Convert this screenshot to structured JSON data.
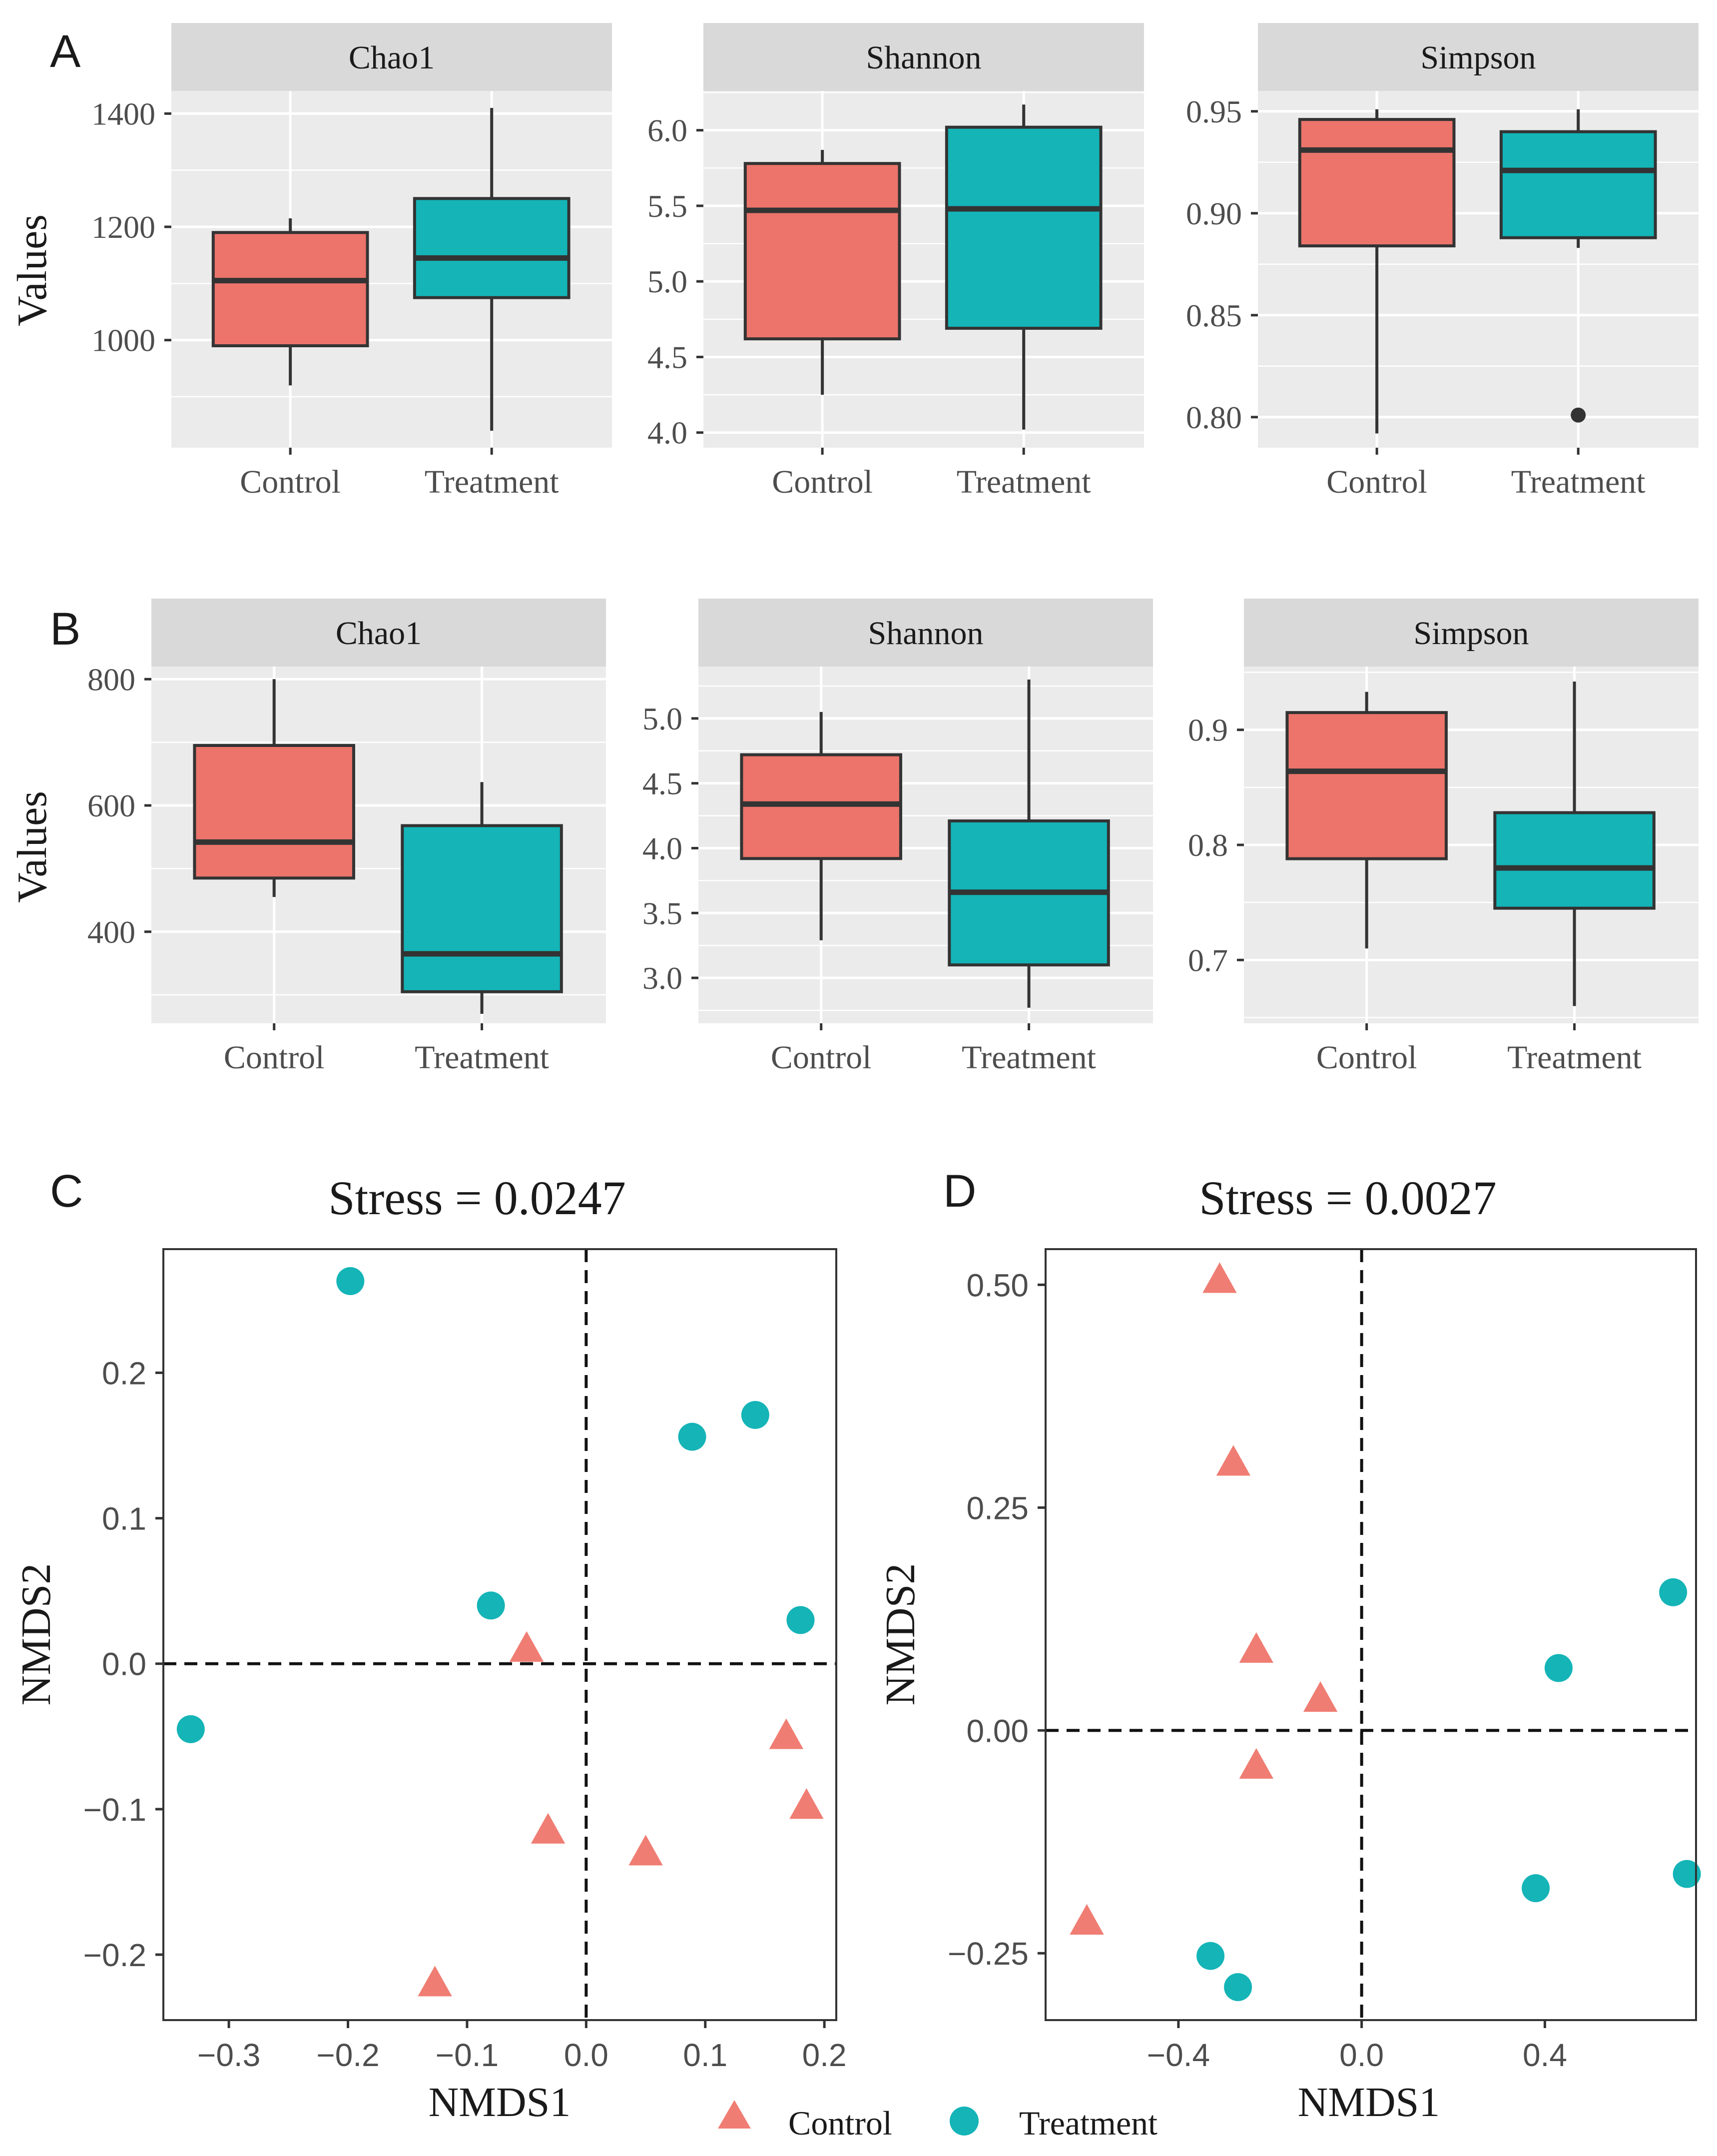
{
  "colors": {
    "control": "#F07D73",
    "control_box": "#EC746B",
    "treatment": "#14B4B7",
    "panel_bg": "#EBEBEB",
    "strip_bg": "#D9D9D9",
    "grid": "#FFFFFF",
    "line": "#333333"
  },
  "chart_data": [
    {
      "type": "box",
      "panel_letter": "A",
      "ylabel": "Values",
      "categories": [
        "Control",
        "Treatment"
      ],
      "facets": [
        {
          "title": "Chao1",
          "ylim": [
            810,
            1440
          ],
          "yticks": [
            1000,
            1200,
            1400
          ],
          "ytick_labels": [
            "1000",
            "1200",
            "1400"
          ],
          "boxes": [
            {
              "group": "Control",
              "min": 920,
              "q1": 990,
              "median": 1105,
              "q3": 1190,
              "max": 1215,
              "outliers": []
            },
            {
              "group": "Treatment",
              "min": 840,
              "q1": 1075,
              "median": 1145,
              "q3": 1250,
              "max": 1410,
              "outliers": []
            }
          ]
        },
        {
          "title": "Shannon",
          "ylim": [
            3.9,
            6.26
          ],
          "yticks": [
            4.0,
            4.5,
            5.0,
            5.5,
            6.0
          ],
          "ytick_labels": [
            "4.0",
            "4.5",
            "5.0",
            "5.5",
            "6.0"
          ],
          "boxes": [
            {
              "group": "Control",
              "min": 4.25,
              "q1": 4.62,
              "median": 5.47,
              "q3": 5.78,
              "max": 5.87,
              "outliers": []
            },
            {
              "group": "Treatment",
              "min": 4.02,
              "q1": 4.69,
              "median": 5.48,
              "q3": 6.02,
              "max": 6.17,
              "outliers": []
            }
          ]
        },
        {
          "title": "Simpson",
          "ylim": [
            0.785,
            0.96
          ],
          "yticks": [
            0.8,
            0.85,
            0.9,
            0.95
          ],
          "ytick_labels": [
            "0.80",
            "0.85",
            "0.90",
            "0.95"
          ],
          "boxes": [
            {
              "group": "Control",
              "min": 0.792,
              "q1": 0.884,
              "median": 0.931,
              "q3": 0.946,
              "max": 0.951,
              "outliers": []
            },
            {
              "group": "Treatment",
              "min": 0.883,
              "q1": 0.888,
              "median": 0.921,
              "q3": 0.94,
              "max": 0.951,
              "outliers": [
                0.801
              ]
            }
          ]
        }
      ]
    },
    {
      "type": "box",
      "panel_letter": "B",
      "ylabel": "Values",
      "categories": [
        "Control",
        "Treatment"
      ],
      "facets": [
        {
          "title": "Chao1",
          "ylim": [
            255,
            820
          ],
          "yticks": [
            400,
            600,
            800
          ],
          "ytick_labels": [
            "400",
            "600",
            "800"
          ],
          "boxes": [
            {
              "group": "Control",
              "min": 455,
              "q1": 485,
              "median": 542,
              "q3": 695,
              "max": 800,
              "outliers": []
            },
            {
              "group": "Treatment",
              "min": 270,
              "q1": 305,
              "median": 365,
              "q3": 568,
              "max": 637,
              "outliers": []
            }
          ]
        },
        {
          "title": "Shannon",
          "ylim": [
            2.65,
            5.4
          ],
          "yticks": [
            3.0,
            3.5,
            4.0,
            4.5,
            5.0
          ],
          "ytick_labels": [
            "3.0",
            "3.5",
            "4.0",
            "4.5",
            "5.0"
          ],
          "boxes": [
            {
              "group": "Control",
              "min": 3.29,
              "q1": 3.92,
              "median": 4.34,
              "q3": 4.72,
              "max": 5.05,
              "outliers": []
            },
            {
              "group": "Treatment",
              "min": 2.77,
              "q1": 3.1,
              "median": 3.66,
              "q3": 4.21,
              "max": 5.3,
              "outliers": []
            }
          ]
        },
        {
          "title": "Simpson",
          "ylim": [
            0.645,
            0.955
          ],
          "yticks": [
            0.7,
            0.8,
            0.9
          ],
          "ytick_labels": [
            "0.7",
            "0.8",
            "0.9"
          ],
          "boxes": [
            {
              "group": "Control",
              "min": 0.71,
              "q1": 0.788,
              "median": 0.864,
              "q3": 0.915,
              "max": 0.933,
              "outliers": []
            },
            {
              "group": "Treatment",
              "min": 0.66,
              "q1": 0.745,
              "median": 0.78,
              "q3": 0.828,
              "max": 0.942,
              "outliers": []
            }
          ]
        }
      ]
    },
    {
      "type": "scatter",
      "panel_letter": "C",
      "title": "Stress = 0.0247",
      "xlabel": "NMDS1",
      "ylabel": "NMDS2",
      "xlim": [
        -0.355,
        0.21
      ],
      "ylim": [
        -0.245,
        0.285
      ],
      "xticks": [
        -0.3,
        -0.2,
        -0.1,
        0.0,
        0.1,
        0.2
      ],
      "xtick_labels": [
        "−0.3",
        "−0.2",
        "−0.1",
        "0.0",
        "0.1",
        "0.2"
      ],
      "yticks": [
        -0.2,
        -0.1,
        0.0,
        0.1,
        0.2
      ],
      "ytick_labels": [
        "−0.2",
        "−0.1",
        "0.0",
        "0.1",
        "0.2"
      ],
      "series": [
        {
          "name": "Control",
          "marker": "triangle",
          "points": [
            [
              -0.05,
              0.01
            ],
            [
              -0.032,
              -0.115
            ],
            [
              0.05,
              -0.13
            ],
            [
              0.168,
              -0.05
            ],
            [
              0.185,
              -0.098
            ],
            [
              -0.127,
              -0.22
            ]
          ]
        },
        {
          "name": "Treatment",
          "marker": "circle",
          "points": [
            [
              -0.198,
              0.263
            ],
            [
              0.089,
              0.156
            ],
            [
              0.142,
              0.171
            ],
            [
              -0.08,
              0.04
            ],
            [
              0.18,
              0.03
            ],
            [
              -0.332,
              -0.045
            ]
          ]
        }
      ]
    },
    {
      "type": "scatter",
      "panel_letter": "D",
      "title": "Stress = 0.0027",
      "xlabel": "NMDS1",
      "ylabel": "NMDS2",
      "xlim": [
        -0.69,
        0.73
      ],
      "ylim": [
        -0.325,
        0.54
      ],
      "xticks": [
        -0.4,
        0.0,
        0.4
      ],
      "xtick_labels": [
        "−0.4",
        "0.0",
        "0.4"
      ],
      "yticks": [
        -0.25,
        0.0,
        0.25,
        0.5
      ],
      "ytick_labels": [
        "−0.25",
        "0.00",
        "0.25",
        "0.50"
      ],
      "series": [
        {
          "name": "Control",
          "marker": "triangle",
          "points": [
            [
              -0.31,
              0.505
            ],
            [
              -0.28,
              0.3
            ],
            [
              -0.23,
              0.09
            ],
            [
              -0.09,
              0.035
            ],
            [
              -0.23,
              -0.04
            ],
            [
              -0.6,
              -0.215
            ]
          ]
        },
        {
          "name": "Treatment",
          "marker": "circle",
          "points": [
            [
              0.68,
              0.155
            ],
            [
              0.43,
              0.07
            ],
            [
              0.38,
              -0.177
            ],
            [
              0.71,
              -0.161
            ],
            [
              -0.33,
              -0.253
            ],
            [
              -0.27,
              -0.288
            ]
          ]
        }
      ]
    }
  ],
  "legend": {
    "items": [
      {
        "label": "Control",
        "marker": "triangle"
      },
      {
        "label": "Treatment",
        "marker": "circle"
      }
    ]
  }
}
